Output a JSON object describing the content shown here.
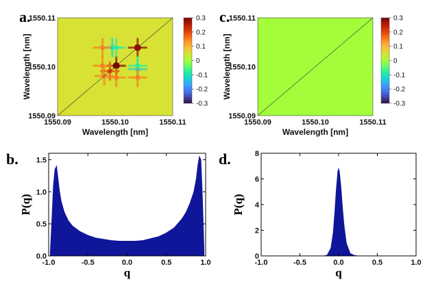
{
  "colorscale": [
    "#30123b",
    "#4145ab",
    "#4675ed",
    "#39a2fc",
    "#1bcfd4",
    "#24eca6",
    "#61fc6c",
    "#a4fc3b",
    "#d1e834",
    "#f3c63a",
    "#fe9b2d",
    "#f36315",
    "#d93806",
    "#b11901",
    "#7a0402"
  ],
  "chart_data": [
    {
      "id": "a",
      "type": "heatmap",
      "panel_label": "a.",
      "xlabel": "Wavelength [nm]",
      "ylabel": "Wavelength [nm]",
      "xticks": [
        "1550.09",
        "1550.10",
        "1550.11"
      ],
      "yticks": [
        "1550.09",
        "1550.10",
        "1550.11"
      ],
      "xlim": [
        1550.09,
        1550.11
      ],
      "ylim": [
        1550.09,
        1550.11
      ],
      "colorbar": {
        "min": -0.3,
        "max": 0.3,
        "ticks": [
          "0.3",
          "0.2",
          "0.1",
          "0",
          "-0.1",
          "-0.2",
          "-0.3"
        ]
      },
      "background_value": 0.05,
      "features": [
        {
          "x": 1550.1002,
          "y": 1550.1002,
          "value": 0.3,
          "desc": "strong red peak"
        },
        {
          "x": 1550.1039,
          "y": 1550.1039,
          "value": 0.28,
          "desc": "strong red peak"
        },
        {
          "x": 1550.0991,
          "y": 1550.0991,
          "value": 0.2
        },
        {
          "x": 1550.0981,
          "y": 1550.0981,
          "value": 0.15
        },
        {
          "x": 1550.0995,
          "y": 1550.1039,
          "value": -0.12
        },
        {
          "x": 1550.1039,
          "y": 1550.0995,
          "value": -0.12
        },
        {
          "x": 1550.1002,
          "y": 1550.1039,
          "value": -0.08
        },
        {
          "x": 1550.1039,
          "y": 1550.1002,
          "value": -0.08
        },
        {
          "x": 1550.0978,
          "y": 1550.1039,
          "value": 0.15
        },
        {
          "x": 1550.1039,
          "y": 1550.0978,
          "value": 0.15
        },
        {
          "x": 1550.0978,
          "y": 1550.1002,
          "value": 0.15
        },
        {
          "x": 1550.1002,
          "y": 1550.0978,
          "value": 0.15
        }
      ],
      "diagonal": true
    },
    {
      "id": "c",
      "type": "heatmap",
      "panel_label": "c.",
      "xlabel": "Wavelength [nm]",
      "ylabel": "Wavelength [nm]",
      "xticks": [
        "1550.09",
        "1550.10",
        "1550.11"
      ],
      "yticks": [
        "1550.09",
        "1550.10",
        "1550.11"
      ],
      "xlim": [
        1550.09,
        1550.11
      ],
      "ylim": [
        1550.09,
        1550.11
      ],
      "colorbar": {
        "min": -0.3,
        "max": 0.3,
        "ticks": [
          "0.3",
          "0.2",
          "0.1",
          "0",
          "-0.1",
          "-0.2",
          "-0.3"
        ]
      },
      "background_value": 0.0,
      "features": [],
      "diagonal": true
    },
    {
      "id": "b",
      "type": "area",
      "panel_label": "b.",
      "xlabel": "q",
      "ylabel": "P(q)",
      "xlim": [
        -1.0,
        1.0
      ],
      "ylim": [
        0.0,
        1.6
      ],
      "xticks": [
        "-1.0",
        "-0.5",
        "0.0",
        "0.5",
        "1.0"
      ],
      "yticks": [
        "0.0",
        "0.5",
        "1.0",
        "1.5"
      ],
      "ytick_values": [
        0,
        0.5,
        1.0,
        1.5
      ],
      "xtick_values": [
        -1,
        -0.5,
        0,
        0.5,
        1
      ],
      "fill_color": "#10169a",
      "x": [
        -0.98,
        -0.96,
        -0.94,
        -0.92,
        -0.9,
        -0.88,
        -0.86,
        -0.84,
        -0.8,
        -0.75,
        -0.7,
        -0.6,
        -0.5,
        -0.4,
        -0.3,
        -0.2,
        -0.1,
        0.0,
        0.1,
        0.2,
        0.3,
        0.4,
        0.5,
        0.6,
        0.7,
        0.75,
        0.8,
        0.85,
        0.88,
        0.9,
        0.92,
        0.94,
        0.96,
        0.98
      ],
      "y": [
        0.05,
        0.55,
        1.1,
        1.35,
        1.4,
        1.2,
        1.0,
        0.85,
        0.68,
        0.55,
        0.47,
        0.38,
        0.32,
        0.28,
        0.26,
        0.24,
        0.23,
        0.23,
        0.23,
        0.24,
        0.27,
        0.3,
        0.36,
        0.44,
        0.58,
        0.68,
        0.82,
        1.0,
        1.2,
        1.4,
        1.55,
        1.5,
        0.9,
        0.1
      ]
    },
    {
      "id": "d",
      "type": "area",
      "panel_label": "d.",
      "xlabel": "q",
      "ylabel": "P(q)",
      "xlim": [
        -1.0,
        1.0
      ],
      "ylim": [
        0,
        8
      ],
      "xticks": [
        "-1.0",
        "-0.5",
        "0.0",
        "0.5",
        "1.0"
      ],
      "yticks": [
        "0",
        "2",
        "4",
        "6",
        "8"
      ],
      "ytick_values": [
        0,
        2,
        4,
        6,
        8
      ],
      "xtick_values": [
        -1,
        -0.5,
        0,
        0.5,
        1
      ],
      "fill_color": "#10169a",
      "x": [
        -0.2,
        -0.15,
        -0.1,
        -0.07,
        -0.05,
        -0.03,
        -0.01,
        0.0,
        0.01,
        0.03,
        0.05,
        0.07,
        0.1,
        0.15,
        0.2,
        0.25
      ],
      "y": [
        0,
        0.05,
        0.6,
        1.8,
        3.4,
        5.2,
        6.6,
        6.8,
        6.6,
        5.4,
        3.8,
        2.4,
        1.0,
        0.2,
        0.05,
        0
      ]
    }
  ]
}
